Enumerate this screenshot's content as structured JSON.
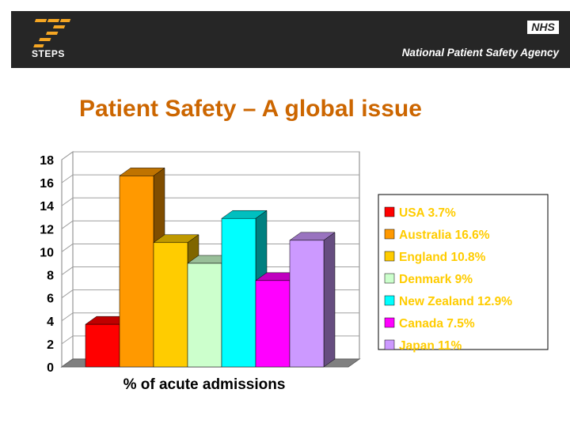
{
  "header": {
    "logo_text": "STEPS",
    "nhs_text": "NHS",
    "agency_text": "National Patient Safety Agency"
  },
  "slide": {
    "title": "Patient Safety – A global issue"
  },
  "colors": {
    "banner": "#262626",
    "title": "#cc6600",
    "legend_text": "#ffcc00"
  },
  "chart_data": {
    "type": "bar",
    "categories": [
      "USA",
      "Australia",
      "England",
      "Denmark",
      "New Zealand",
      "Canada",
      "Japan"
    ],
    "values": [
      3.7,
      16.6,
      10.8,
      9,
      12.9,
      7.5,
      11
    ],
    "colors": [
      "#ff0000",
      "#ff9900",
      "#ffcc00",
      "#ccffcc",
      "#00ffff",
      "#ff00ff",
      "#cc99ff"
    ],
    "legend_labels": [
      "USA 3.7%",
      "Australia 16.6%",
      "England 10.8%",
      "Denmark 9%",
      "New Zealand 12.9%",
      "Canada 7.5%",
      "Japan 11%"
    ],
    "xlabel": "% of acute admissions",
    "ylabel": "",
    "ylim": [
      0,
      18
    ],
    "yticks": [
      0,
      2,
      4,
      6,
      8,
      10,
      12,
      14,
      16,
      18
    ],
    "three_d": true,
    "grid": true,
    "legend_position": "right"
  }
}
